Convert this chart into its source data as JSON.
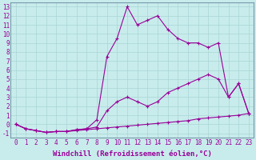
{
  "xlabel": "Windchill (Refroidissement éolien,°C)",
  "background_color": "#c8ecec",
  "grid_color": "#aad4d4",
  "line_color": "#990099",
  "xlim": [
    -0.5,
    23.5
  ],
  "ylim": [
    -1.5,
    13.5
  ],
  "xticks": [
    0,
    1,
    2,
    3,
    4,
    5,
    6,
    7,
    8,
    9,
    10,
    11,
    12,
    13,
    14,
    15,
    16,
    17,
    18,
    19,
    20,
    21,
    22,
    23
  ],
  "yticks": [
    -1,
    0,
    1,
    2,
    3,
    4,
    5,
    6,
    7,
    8,
    9,
    10,
    11,
    12,
    13
  ],
  "line1_x": [
    0,
    1,
    2,
    3,
    4,
    5,
    6,
    7,
    8,
    9,
    10,
    11,
    12,
    13,
    14,
    15,
    16,
    17,
    18,
    19,
    20,
    21,
    22,
    23
  ],
  "line1_y": [
    0.0,
    -0.5,
    -0.7,
    -0.9,
    -0.8,
    -0.8,
    -0.7,
    -0.6,
    -0.5,
    -0.4,
    -0.3,
    -0.2,
    -0.1,
    0.0,
    0.1,
    0.2,
    0.3,
    0.4,
    0.6,
    0.7,
    0.8,
    0.9,
    1.0,
    1.2
  ],
  "line2_x": [
    0,
    1,
    2,
    3,
    4,
    5,
    6,
    7,
    8,
    9,
    10,
    11,
    12,
    13,
    14,
    15,
    16,
    17,
    18,
    19,
    20,
    21,
    22,
    23
  ],
  "line2_y": [
    0.0,
    -0.5,
    -0.7,
    -0.9,
    -0.8,
    -0.8,
    -0.6,
    -0.5,
    0.5,
    7.5,
    9.5,
    13.0,
    11.0,
    11.5,
    12.0,
    10.5,
    9.5,
    9.0,
    9.0,
    8.5,
    9.0,
    3.0,
    4.5,
    1.2
  ],
  "line3_x": [
    0,
    1,
    2,
    3,
    4,
    5,
    6,
    7,
    8,
    9,
    10,
    11,
    12,
    13,
    14,
    15,
    16,
    17,
    18,
    19,
    20,
    21,
    22,
    23
  ],
  "line3_y": [
    0.0,
    -0.5,
    -0.7,
    -0.9,
    -0.8,
    -0.8,
    -0.6,
    -0.5,
    -0.3,
    1.5,
    2.5,
    3.0,
    2.5,
    2.0,
    2.5,
    3.5,
    4.0,
    4.5,
    5.0,
    5.5,
    5.0,
    3.0,
    4.5,
    1.2
  ],
  "marker": "+",
  "markersize": 3,
  "linewidth": 0.8,
  "tick_fontsize": 5.5,
  "label_fontsize": 6.5
}
